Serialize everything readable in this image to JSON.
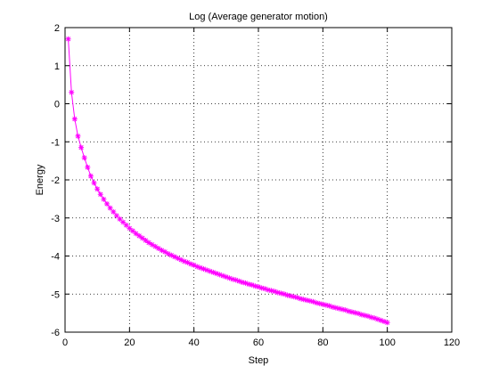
{
  "chart_data": {
    "type": "line",
    "title": "Log (Average generator motion)",
    "xlabel": "Step",
    "ylabel": "Energy",
    "xlim": [
      0,
      120
    ],
    "ylim": [
      -6,
      2
    ],
    "xticks": [
      0,
      20,
      40,
      60,
      80,
      100,
      120
    ],
    "yticks": [
      -6,
      -5,
      -4,
      -3,
      -2,
      -1,
      0,
      1,
      2
    ],
    "grid": true,
    "marker": "asterisk",
    "line_color": "#ff00ff",
    "series": [
      {
        "x": [
          1,
          2,
          3,
          4,
          5,
          6,
          7,
          8,
          9,
          10,
          11,
          12,
          13,
          14,
          15,
          16,
          17,
          18,
          19,
          20,
          21,
          22,
          23,
          24,
          25,
          26,
          27,
          28,
          29,
          30,
          31,
          32,
          33,
          34,
          35,
          36,
          37,
          38,
          39,
          40,
          41,
          42,
          43,
          44,
          45,
          46,
          47,
          48,
          49,
          50,
          51,
          52,
          53,
          54,
          55,
          56,
          57,
          58,
          59,
          60,
          61,
          62,
          63,
          64,
          65,
          66,
          67,
          68,
          69,
          70,
          71,
          72,
          73,
          74,
          75,
          76,
          77,
          78,
          79,
          80,
          81,
          82,
          83,
          84,
          85,
          86,
          87,
          88,
          89,
          90,
          91,
          92,
          93,
          94,
          95,
          96,
          97,
          98,
          99,
          100
        ],
        "values": [
          1.7,
          0.3,
          -0.4,
          -0.85,
          -1.15,
          -1.42,
          -1.67,
          -1.9,
          -2.08,
          -2.24,
          -2.38,
          -2.51,
          -2.63,
          -2.74,
          -2.84,
          -2.94,
          -3.03,
          -3.11,
          -3.19,
          -3.27,
          -3.34,
          -3.41,
          -3.47,
          -3.53,
          -3.59,
          -3.65,
          -3.7,
          -3.75,
          -3.8,
          -3.85,
          -3.89,
          -3.94,
          -3.98,
          -4.02,
          -4.06,
          -4.1,
          -4.14,
          -4.17,
          -4.21,
          -4.24,
          -4.28,
          -4.31,
          -4.34,
          -4.37,
          -4.4,
          -4.43,
          -4.46,
          -4.49,
          -4.52,
          -4.55,
          -4.58,
          -4.61,
          -4.63,
          -4.66,
          -4.69,
          -4.71,
          -4.74,
          -4.76,
          -4.79,
          -4.81,
          -4.84,
          -4.86,
          -4.89,
          -4.91,
          -4.93,
          -4.96,
          -4.98,
          -5.0,
          -5.03,
          -5.05,
          -5.07,
          -5.09,
          -5.12,
          -5.14,
          -5.16,
          -5.18,
          -5.2,
          -5.23,
          -5.25,
          -5.27,
          -5.29,
          -5.31,
          -5.34,
          -5.36,
          -5.38,
          -5.4,
          -5.42,
          -5.45,
          -5.47,
          -5.49,
          -5.51,
          -5.54,
          -5.56,
          -5.58,
          -5.61,
          -5.63,
          -5.66,
          -5.69,
          -5.72,
          -5.75
        ]
      }
    ]
  }
}
